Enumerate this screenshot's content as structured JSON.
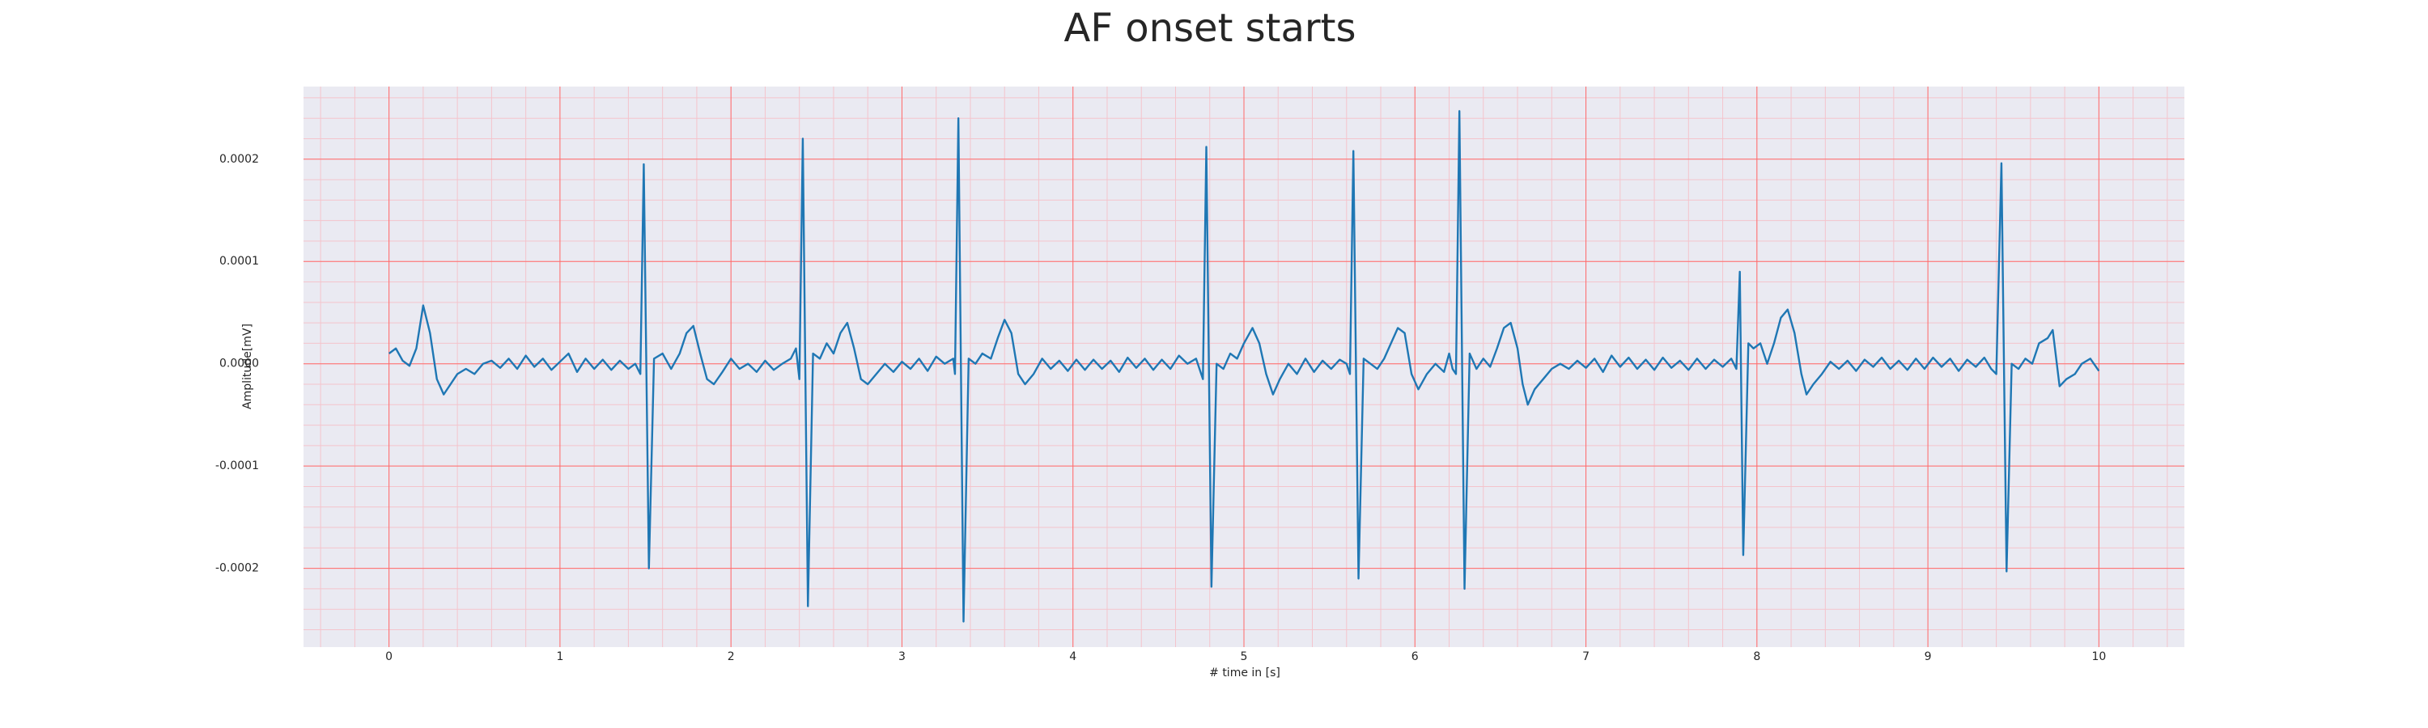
{
  "chart_data": {
    "type": "line",
    "title": "AF onset starts",
    "xlabel": "# time in [s]",
    "ylabel": "Amplitude[mV]",
    "color": "#1f77b4",
    "grid": true,
    "grid_color": "#ff6b6b",
    "minor_grid_color": "#f4c4cc",
    "background": "#eaeaf2",
    "xlim": [
      -0.5,
      10.5
    ],
    "xticks": [
      0,
      1,
      2,
      3,
      4,
      5,
      6,
      7,
      8,
      9,
      10
    ],
    "ylim": [
      -0.000277,
      0.000271
    ],
    "yticks": [
      -0.0002,
      -0.0001,
      {
        "value": 0,
        "label": "0.0000"
      },
      0.0001,
      0.0002
    ],
    "x": [
      0,
      0.04,
      0.08,
      0.12,
      0.16,
      0.2,
      0.24,
      0.28,
      0.32,
      0.36,
      0.4,
      0.45,
      0.5,
      0.55,
      0.6,
      0.65,
      0.7,
      0.75,
      0.8,
      0.85,
      0.9,
      0.95,
      1.0,
      1.05,
      1.1,
      1.15,
      1.2,
      1.25,
      1.3,
      1.35,
      1.4,
      1.44,
      1.47,
      1.49,
      1.52,
      1.55,
      1.6,
      1.65,
      1.7,
      1.74,
      1.78,
      1.82,
      1.86,
      1.9,
      1.95,
      2.0,
      2.05,
      2.1,
      2.15,
      2.2,
      2.25,
      2.3,
      2.35,
      2.38,
      2.4,
      2.42,
      2.45,
      2.48,
      2.52,
      2.56,
      2.6,
      2.64,
      2.68,
      2.72,
      2.76,
      2.8,
      2.85,
      2.9,
      2.95,
      3.0,
      3.05,
      3.1,
      3.15,
      3.2,
      3.25,
      3.3,
      3.31,
      3.33,
      3.36,
      3.39,
      3.43,
      3.47,
      3.52,
      3.56,
      3.6,
      3.64,
      3.68,
      3.72,
      3.77,
      3.82,
      3.87,
      3.92,
      3.97,
      4.02,
      4.07,
      4.12,
      4.17,
      4.22,
      4.27,
      4.32,
      4.37,
      4.42,
      4.47,
      4.52,
      4.57,
      4.62,
      4.67,
      4.72,
      4.76,
      4.78,
      4.81,
      4.84,
      4.88,
      4.92,
      4.96,
      5.0,
      5.05,
      5.09,
      5.13,
      5.17,
      5.21,
      5.26,
      5.31,
      5.36,
      5.41,
      5.46,
      5.51,
      5.56,
      5.6,
      5.62,
      5.64,
      5.67,
      5.7,
      5.74,
      5.78,
      5.82,
      5.86,
      5.9,
      5.94,
      5.98,
      6.02,
      6.07,
      6.12,
      6.17,
      6.2,
      6.22,
      6.24,
      6.26,
      6.29,
      6.32,
      6.36,
      6.4,
      6.44,
      6.48,
      6.52,
      6.56,
      6.6,
      6.63,
      6.66,
      6.7,
      6.75,
      6.8,
      6.85,
      6.9,
      6.95,
      7.0,
      7.05,
      7.1,
      7.15,
      7.2,
      7.25,
      7.3,
      7.35,
      7.4,
      7.45,
      7.5,
      7.55,
      7.6,
      7.65,
      7.7,
      7.75,
      7.8,
      7.85,
      7.88,
      7.9,
      7.92,
      7.95,
      7.98,
      8.02,
      8.06,
      8.1,
      8.14,
      8.18,
      8.22,
      8.26,
      8.29,
      8.33,
      8.38,
      8.43,
      8.48,
      8.53,
      8.58,
      8.63,
      8.68,
      8.73,
      8.78,
      8.83,
      8.88,
      8.93,
      8.98,
      9.03,
      9.08,
      9.13,
      9.18,
      9.23,
      9.28,
      9.33,
      9.37,
      9.4,
      9.43,
      9.46,
      9.49,
      9.53,
      9.57,
      9.61,
      9.65,
      9.7,
      9.73,
      9.77,
      9.81,
      9.86,
      9.9,
      9.95,
      10.0
    ],
    "values": [
      1e-05,
      1.5e-05,
      3e-06,
      -2e-06,
      1.5e-05,
      5.7e-05,
      3e-05,
      -1.5e-05,
      -3e-05,
      -2e-05,
      -1e-05,
      -5e-06,
      -1e-05,
      0,
      3e-06,
      -4e-06,
      5e-06,
      -5e-06,
      8e-06,
      -3e-06,
      5e-06,
      -6e-06,
      2e-06,
      1e-05,
      -8e-06,
      5e-06,
      -5e-06,
      4e-06,
      -6e-06,
      3e-06,
      -5e-06,
      0,
      -1e-05,
      0.000195,
      -0.0002,
      5e-06,
      1e-05,
      -5e-06,
      1e-05,
      3e-05,
      3.7e-05,
      1e-05,
      -1.5e-05,
      -2e-05,
      -8e-06,
      5e-06,
      -5e-06,
      0,
      -8e-06,
      3e-06,
      -6e-06,
      0,
      5e-06,
      1.5e-05,
      -1.5e-05,
      0.00022,
      -0.000237,
      1e-05,
      5e-06,
      2e-05,
      1e-05,
      3e-05,
      4e-05,
      1.5e-05,
      -1.5e-05,
      -2e-05,
      -1e-05,
      0,
      -8e-06,
      2e-06,
      -5e-06,
      5e-06,
      -7e-06,
      7e-06,
      0,
      5e-06,
      -1e-05,
      0.00024,
      -0.000252,
      5e-06,
      0,
      1e-05,
      5e-06,
      2.5e-05,
      4.3e-05,
      3e-05,
      -1e-05,
      -2e-05,
      -1e-05,
      5e-06,
      -5e-06,
      3e-06,
      -7e-06,
      4e-06,
      -6e-06,
      4e-06,
      -5e-06,
      3e-06,
      -8e-06,
      6e-06,
      -4e-06,
      5e-06,
      -6e-06,
      4e-06,
      -5e-06,
      8e-06,
      0,
      5e-06,
      -1.5e-05,
      0.000212,
      -0.000218,
      0,
      -5e-06,
      1e-05,
      5e-06,
      2e-05,
      3.5e-05,
      2e-05,
      -1e-05,
      -3e-05,
      -1.5e-05,
      0,
      -1e-05,
      5e-06,
      -8e-06,
      3e-06,
      -5e-06,
      4e-06,
      0,
      -1e-05,
      0.000208,
      -0.00021,
      5e-06,
      0,
      -5e-06,
      5e-06,
      2e-05,
      3.5e-05,
      3e-05,
      -1e-05,
      -2.5e-05,
      -1e-05,
      0,
      -8e-06,
      1e-05,
      -5e-06,
      -1e-05,
      0.000247,
      -0.00022,
      1e-05,
      -5e-06,
      5e-06,
      -3e-06,
      1.5e-05,
      3.5e-05,
      4e-05,
      1.5e-05,
      -2e-05,
      -4e-05,
      -2.5e-05,
      -1.5e-05,
      -5e-06,
      0,
      -5e-06,
      3e-06,
      -4e-06,
      5e-06,
      -8e-06,
      8e-06,
      -3e-06,
      6e-06,
      -5e-06,
      4e-06,
      -6e-06,
      6e-06,
      -4e-06,
      3e-06,
      -6e-06,
      5e-06,
      -5e-06,
      4e-06,
      -3e-06,
      5e-06,
      -5e-06,
      9e-05,
      -0.000187,
      2e-05,
      1.5e-05,
      2e-05,
      0,
      2e-05,
      4.5e-05,
      5.3e-05,
      3e-05,
      -1e-05,
      -3e-05,
      -2e-05,
      -1e-05,
      2e-06,
      -5e-06,
      3e-06,
      -7e-06,
      4e-06,
      -3e-06,
      6e-06,
      -5e-06,
      3e-06,
      -6e-06,
      5e-06,
      -5e-06,
      6e-06,
      -3e-06,
      5e-06,
      -7e-06,
      4e-06,
      -3e-06,
      6e-06,
      -5e-06,
      -1e-05,
      0.000196,
      -0.000203,
      0,
      -5e-06,
      5e-06,
      0,
      2e-05,
      2.5e-05,
      3.3e-05,
      -2.2e-05,
      -1.5e-05,
      -1e-05,
      0,
      5e-06,
      -7e-06
    ]
  }
}
